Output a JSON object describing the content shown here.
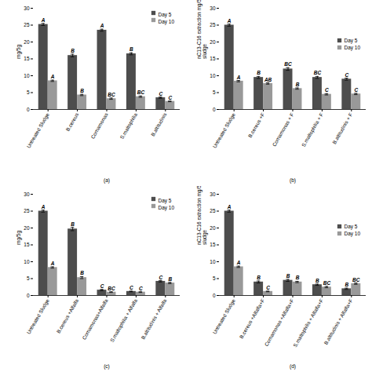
{
  "chart_data": [
    {
      "type": "bar",
      "xlabel": "(a)",
      "ylabel": "mg/5g",
      "categories": [
        "Untreated Sludge",
        "B.cereus",
        "Comamonas",
        "S.maltophilia",
        "B.altitudinis"
      ],
      "series": [
        {
          "name": "Day 5",
          "color": "#4d4d4d",
          "values": [
            25.2,
            16.0,
            23.5,
            16.5,
            3.5
          ],
          "errors": [
            0.3,
            0.4,
            0.3,
            0.3,
            0.2
          ],
          "letters": [
            "A",
            "B",
            "A",
            "B",
            "C"
          ]
        },
        {
          "name": "Day 10",
          "color": "#999999",
          "values": [
            8.5,
            4.3,
            3.2,
            3.8,
            2.4
          ],
          "errors": [
            0.2,
            0.2,
            0.2,
            0.2,
            0.1
          ],
          "letters": [
            "A",
            "B",
            "BC",
            "BC",
            "C"
          ]
        }
      ],
      "ylim": [
        0,
        30
      ],
      "yticks": [
        0,
        5,
        10,
        15,
        20,
        25,
        30
      ],
      "grid": false,
      "legend": "upper right"
    },
    {
      "type": "bar",
      "xlabel": "(b)",
      "ylabel": "nC13-C16 extraction mg/5g of oily\nsludge",
      "categories": [
        "Untreated Sludge",
        "B.cereus +F",
        "Comamonas + F",
        "S.maltophilia + F",
        "B.altitudinis + F"
      ],
      "series": [
        {
          "name": "Day 5",
          "color": "#4d4d4d",
          "values": [
            25.0,
            9.5,
            12.0,
            9.5,
            9.0
          ],
          "errors": [
            0.3,
            0.3,
            0.4,
            0.3,
            0.3
          ],
          "letters": [
            "A",
            "B",
            "BC",
            "BC",
            "C"
          ]
        },
        {
          "name": "Day 10",
          "color": "#999999",
          "values": [
            8.4,
            7.7,
            6.2,
            4.5,
            4.6
          ],
          "errors": [
            0.2,
            0.2,
            0.2,
            0.2,
            0.2
          ],
          "letters": [
            "A",
            "AB",
            "B",
            "C",
            "C"
          ]
        }
      ],
      "ylim": [
        0,
        30
      ],
      "yticks": [
        0,
        5,
        10,
        15,
        20,
        25,
        30
      ],
      "grid": false,
      "legend": "right"
    },
    {
      "type": "bar",
      "xlabel": "(c)",
      "ylabel": "mg/5g",
      "categories": [
        "Untreated Sludge",
        "B.cereus +Alfalfa",
        "Comamonas+Alfalfa",
        "S.maltophilia + Alfalfa",
        "B.altitudinis + Alfalfa"
      ],
      "series": [
        {
          "name": "Day 5",
          "color": "#4d4d4d",
          "values": [
            25.0,
            19.7,
            1.6,
            1.2,
            4.2
          ],
          "errors": [
            0.3,
            0.5,
            0.2,
            0.1,
            0.2
          ],
          "letters": [
            "A",
            "B",
            "C",
            "C",
            "C"
          ]
        },
        {
          "name": "Day 10",
          "color": "#999999",
          "values": [
            8.3,
            5.3,
            1.0,
            1.0,
            3.7
          ],
          "errors": [
            0.2,
            0.3,
            0.1,
            0.1,
            0.2
          ],
          "letters": [
            "A",
            "B",
            "BC",
            "C",
            "B"
          ]
        }
      ],
      "ylim": [
        0,
        30
      ],
      "yticks": [
        0,
        5,
        10,
        15,
        20,
        25,
        30
      ],
      "grid": false,
      "legend": "upper right"
    },
    {
      "type": "bar",
      "xlabel": "(d)",
      "ylabel": "nC13-C16 extraction mg/5g of oily\nsludge",
      "categories": [
        "Untreated Sludge",
        "B.cereus +Alfalfa+F",
        "Comamonas +Alfalfa+F",
        "S.maltophilis + Alfalfa+F",
        "B.altitudinis + Alfalfa+F"
      ],
      "series": [
        {
          "name": "Day 5",
          "color": "#4d4d4d",
          "values": [
            25.0,
            4.0,
            4.5,
            3.2,
            2.0
          ],
          "errors": [
            0.3,
            0.3,
            0.3,
            0.2,
            0.2
          ],
          "letters": [
            "A",
            "B",
            "B",
            "B",
            "B"
          ]
        },
        {
          "name": "Day 10",
          "color": "#999999",
          "values": [
            8.5,
            1.2,
            4.0,
            2.5,
            3.5
          ],
          "errors": [
            0.2,
            0.1,
            0.2,
            0.2,
            0.2
          ],
          "letters": [
            "A",
            "C",
            "B",
            "BC",
            "BC"
          ]
        }
      ],
      "ylim": [
        0,
        30
      ],
      "yticks": [
        0,
        5,
        10,
        15,
        20,
        25,
        30
      ],
      "grid": false,
      "legend": "right"
    }
  ]
}
